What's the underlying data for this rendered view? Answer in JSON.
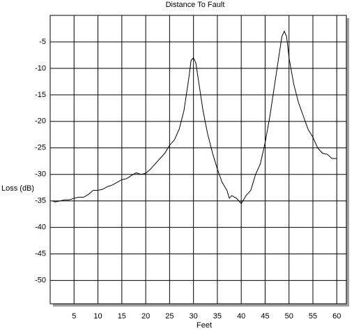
{
  "chart_data": {
    "type": "line",
    "title": "Distance To Fault",
    "x_label": "Feet",
    "y_label": "Loss (dB)",
    "x": [
      0.5,
      1,
      2,
      3,
      4,
      5,
      6,
      7,
      8,
      9,
      10,
      11,
      12,
      13,
      14,
      15,
      16,
      17,
      18,
      19,
      20,
      21,
      22,
      23,
      24,
      25,
      26,
      27,
      28,
      29,
      29.5,
      30,
      30.5,
      31,
      32,
      33,
      34,
      35,
      36,
      37,
      37.5,
      38,
      39,
      40,
      41,
      42,
      43,
      44,
      45,
      46,
      47,
      48,
      48.5,
      49,
      49.5,
      50,
      51,
      52,
      53,
      54,
      55,
      56,
      57,
      58,
      59,
      60
    ],
    "series": [
      {
        "name": "Loss",
        "color": "#000000",
        "values": [
          -35,
          -35.2,
          -35,
          -34.8,
          -34.8,
          -34.5,
          -34.3,
          -34.3,
          -33.8,
          -33,
          -33,
          -32.8,
          -32.3,
          -32,
          -31.5,
          -31,
          -30.8,
          -30.2,
          -29.7,
          -30,
          -29.8,
          -29,
          -28,
          -27,
          -26,
          -24.5,
          -23.5,
          -21.5,
          -18,
          -12,
          -8.5,
          -8,
          -9,
          -12,
          -18,
          -22.5,
          -26,
          -29,
          -31.5,
          -33,
          -34.5,
          -34,
          -34.5,
          -35.5,
          -34,
          -33,
          -30,
          -28,
          -24,
          -19,
          -13,
          -7,
          -4,
          -3,
          -4,
          -8,
          -13,
          -16.5,
          -19,
          -21.5,
          -23,
          -25,
          -26,
          -26.2,
          -27,
          -27
        ]
      }
    ],
    "xlim": [
      0,
      62
    ],
    "ylim": [
      -54.4,
      0
    ],
    "xticks": [
      5,
      10,
      15,
      20,
      25,
      30,
      35,
      40,
      45,
      50,
      55,
      60
    ],
    "yticks": [
      -50,
      -45,
      -40,
      -35,
      -30,
      -25,
      -20,
      -15,
      -10,
      -5
    ],
    "grid": true
  }
}
